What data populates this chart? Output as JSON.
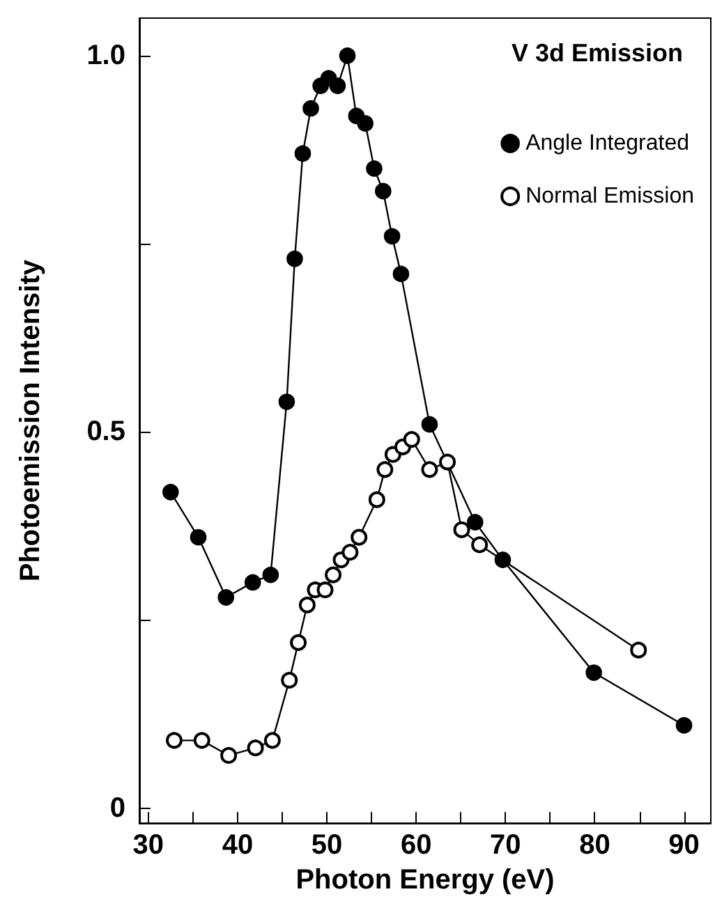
{
  "chart_data": {
    "type": "line",
    "title": "V 3d Emission",
    "xlabel": "Photon Energy (eV)",
    "ylabel": "Photoemission Intensity",
    "xlim": [
      29,
      93
    ],
    "ylim": [
      -0.02,
      1.05
    ],
    "xticks": [
      30,
      {
        "value": 35,
        "label": null
      },
      40,
      {
        "value": 45,
        "label": null
      },
      50,
      {
        "value": 55,
        "label": null
      },
      60,
      {
        "value": 65,
        "label": null
      },
      70,
      {
        "value": 75,
        "label": null
      },
      80,
      {
        "value": 85,
        "label": null
      },
      90
    ],
    "yticks": [
      0,
      {
        "value": 0.25,
        "label": null
      },
      {
        "value": 0.5,
        "label": "0.5"
      },
      {
        "value": 0.75,
        "label": null
      },
      {
        "value": 1,
        "label": "1.0"
      }
    ],
    "grid": false,
    "legend": "top right",
    "series": [
      {
        "name": "Angle Integrated",
        "color": "#000000",
        "marker": "circle",
        "x": [
          32.5,
          35.6,
          38.7,
          41.7,
          43.7,
          45.5,
          46.4,
          47.3,
          48.2,
          49.3,
          50.2,
          51.2,
          52.3,
          53.3,
          54.3,
          55.3,
          56.3,
          57.3,
          58.3,
          61.5,
          66.6,
          69.7,
          79.9,
          90.0
        ],
        "values": [
          0.42,
          0.36,
          0.28,
          0.3,
          0.31,
          0.54,
          0.73,
          0.87,
          0.93,
          0.96,
          0.97,
          0.96,
          1.0,
          0.92,
          0.91,
          0.85,
          0.82,
          0.76,
          0.71,
          0.51,
          0.38,
          0.33,
          0.18,
          0.11
        ]
      },
      {
        "name": "Normal Emission",
        "color": "#000000",
        "marker": "emptyCircle",
        "x": [
          32.9,
          36.0,
          39.0,
          42.0,
          43.9,
          45.8,
          46.8,
          47.8,
          48.7,
          49.8,
          50.7,
          51.6,
          52.6,
          53.6,
          55.6,
          56.5,
          57.4,
          58.5,
          59.5,
          61.5,
          63.5,
          65.1,
          67.1,
          84.9
        ],
        "values": [
          0.09,
          0.09,
          0.07,
          0.08,
          0.09,
          0.17,
          0.22,
          0.27,
          0.29,
          0.29,
          0.31,
          0.33,
          0.34,
          0.36,
          0.41,
          0.45,
          0.47,
          0.48,
          0.49,
          0.45,
          0.46,
          0.37,
          0.35,
          0.21
        ]
      }
    ]
  }
}
